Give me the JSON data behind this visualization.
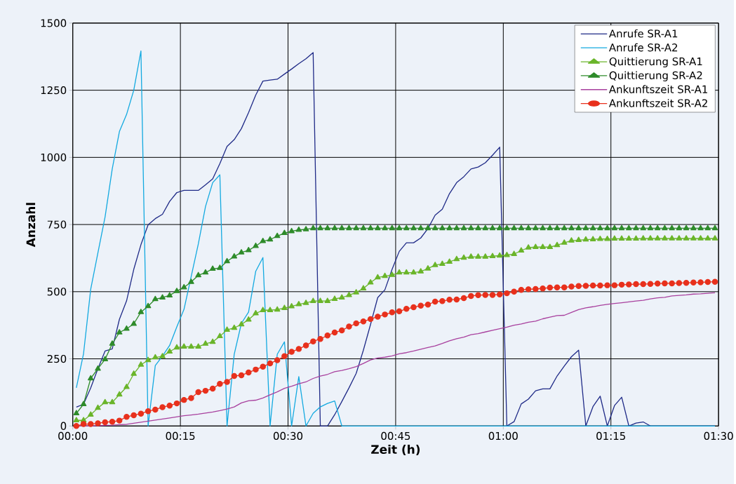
{
  "chart_data": {
    "type": "line",
    "xlabel": "Zeit (h)",
    "ylabel": "Anzahl",
    "x": [
      0.5,
      1.5,
      2.5,
      3.5,
      4.5,
      5.5,
      6.5,
      7.5,
      8.5,
      9.5,
      10.5,
      11.5,
      12.5,
      13.5,
      14.5,
      15.5,
      16.5,
      17.5,
      18.5,
      19.5,
      20.5,
      21.5,
      22.5,
      23.5,
      24.5,
      25.5,
      26.5,
      27.5,
      28.5,
      29.5,
      30.5,
      31.5,
      32.5,
      33.5,
      34.5,
      35.5,
      36.5,
      37.5,
      38.5,
      39.5,
      40.5,
      41.5,
      42.5,
      43.5,
      44.5,
      45.5,
      46.5,
      47.5,
      48.5,
      49.5,
      50.5,
      51.5,
      52.5,
      53.5,
      54.5,
      55.5,
      56.5,
      57.5,
      58.5,
      59.5,
      60.5,
      61.5,
      62.5,
      63.5,
      64.5,
      65.5,
      66.5,
      67.5,
      68.5,
      69.5,
      70.5,
      71.5,
      72.5,
      73.5,
      74.5,
      75.5,
      76.5,
      77.5,
      78.5,
      79.5,
      80.5,
      81.5,
      82.5,
      83.5,
      84.5,
      85.5,
      86.5,
      87.5,
      88.5,
      89.5
    ],
    "xlim": [
      0,
      90
    ],
    "xticks": [
      {
        "value": 0,
        "label": "00:00"
      },
      {
        "value": 15,
        "label": "00:15"
      },
      {
        "value": 30,
        "label": "00:30"
      },
      {
        "value": 45,
        "label": "00:45"
      },
      {
        "value": 60,
        "label": "01:00"
      },
      {
        "value": 75,
        "label": "01:15"
      },
      {
        "value": 90,
        "label": "01:30"
      }
    ],
    "ylim": [
      0,
      1500
    ],
    "yticks": [
      0,
      250,
      500,
      750,
      1000,
      1250,
      1500
    ],
    "grid": true,
    "legend": "top right",
    "series": [
      {
        "name": "Anrufe SR-A1",
        "color": "#1f2a87",
        "marker": "none",
        "values": [
          70,
          81,
          142,
          213,
          279,
          287,
          397,
          466,
          583,
          675,
          749,
          772,
          788,
          836,
          869,
          877,
          877,
          877,
          898,
          920,
          977,
          1041,
          1066,
          1107,
          1167,
          1232,
          1284,
          1288,
          1291,
          1310,
          1329,
          1349,
          1367,
          1390,
          0,
          0,
          42,
          91,
          142,
          196,
          282,
          378,
          478,
          507,
          583,
          650,
          682,
          682,
          700,
          735,
          785,
          807,
          865,
          906,
          928,
          957,
          964,
          980,
          1008,
          1038,
          0,
          16,
          82,
          100,
          131,
          138,
          138,
          186,
          223,
          258,
          282,
          0,
          72,
          111,
          0,
          76,
          107,
          0,
          11,
          15,
          0,
          0,
          0,
          0,
          0,
          0,
          0,
          0,
          0,
          0
        ]
      },
      {
        "name": "Anrufe SR-A2",
        "color": "#12a9e0",
        "marker": "none",
        "values": [
          142,
          269,
          509,
          644,
          778,
          957,
          1096,
          1160,
          1250,
          1396,
          0,
          225,
          260,
          300,
          369,
          434,
          556,
          678,
          817,
          906,
          935,
          0,
          267,
          382,
          424,
          576,
          627,
          0,
          267,
          313,
          0,
          184,
          0,
          47,
          71,
          84,
          93,
          0,
          0,
          0,
          0,
          0,
          0,
          0,
          0,
          0,
          0,
          0,
          0,
          0,
          0,
          0,
          0,
          0,
          0,
          0,
          0,
          0,
          0,
          0,
          0,
          0,
          0,
          0,
          0,
          0,
          0,
          0,
          0,
          0,
          0,
          0,
          0,
          0,
          0,
          0,
          0,
          0,
          0,
          0,
          0,
          0,
          0,
          0,
          0,
          0,
          0,
          0,
          0,
          0
        ]
      },
      {
        "name": "Quittierung SR-A1",
        "color": "#6ab52a",
        "marker": "triangle",
        "values": [
          21,
          21,
          42,
          67,
          88,
          88,
          117,
          145,
          194,
          228,
          245,
          255,
          259,
          277,
          292,
          295,
          295,
          295,
          306,
          313,
          334,
          358,
          365,
          378,
          396,
          419,
          431,
          431,
          433,
          439,
          445,
          453,
          458,
          465,
          465,
          465,
          473,
          478,
          487,
          497,
          512,
          534,
          553,
          558,
          562,
          571,
          571,
          571,
          575,
          586,
          599,
          603,
          611,
          621,
          626,
          630,
          630,
          630,
          632,
          634,
          636,
          640,
          653,
          664,
          666,
          666,
          666,
          673,
          682,
          690,
          692,
          694,
          695,
          696,
          696,
          697,
          697,
          697,
          697,
          698,
          698,
          698,
          698,
          698,
          698,
          698,
          698,
          698,
          698,
          698
        ]
      },
      {
        "name": "Quittierung SR-A2",
        "color": "#2e8b2a",
        "marker": "triangle",
        "values": [
          47,
          81,
          177,
          213,
          248,
          306,
          348,
          362,
          380,
          424,
          446,
          472,
          478,
          486,
          502,
          516,
          536,
          561,
          571,
          585,
          588,
          613,
          631,
          646,
          654,
          670,
          688,
          694,
          707,
          718,
          725,
          730,
          732,
          736,
          736,
          736,
          736,
          736,
          736,
          736,
          736,
          736,
          736,
          736,
          736,
          736,
          736,
          736,
          736,
          736,
          736,
          736,
          736,
          736,
          736,
          736,
          736,
          736,
          736,
          736,
          736,
          736,
          736,
          736,
          736,
          736,
          736,
          736,
          736,
          736,
          736,
          736,
          736,
          736,
          736,
          736,
          736,
          736,
          736,
          736,
          736,
          736,
          736,
          736,
          736,
          736,
          736,
          736,
          736,
          736
        ]
      },
      {
        "name": "Ankunftszeit SR-A1",
        "color": "#a8409e",
        "marker": "none",
        "values": [
          0,
          0,
          0,
          1,
          2,
          3,
          5,
          6,
          10,
          14,
          18,
          22,
          26,
          30,
          34,
          38,
          41,
          44,
          48,
          52,
          57,
          63,
          71,
          86,
          94,
          96,
          104,
          116,
          127,
          140,
          148,
          157,
          164,
          177,
          186,
          192,
          202,
          207,
          213,
          221,
          233,
          246,
          253,
          256,
          261,
          269,
          273,
          279,
          286,
          292,
          298,
          307,
          317,
          325,
          331,
          340,
          344,
          350,
          356,
          362,
          368,
          375,
          380,
          386,
          390,
          399,
          405,
          411,
          412,
          423,
          433,
          440,
          444,
          449,
          453,
          456,
          459,
          462,
          465,
          468,
          473,
          477,
          479,
          484,
          486,
          488,
          491,
          492,
          494,
          496
        ]
      },
      {
        "name": "Ankunftszeit SR-A2",
        "color": "#e8301c",
        "marker": "circle",
        "values": [
          0,
          7,
          7,
          10,
          14,
          16,
          20,
          34,
          40,
          46,
          55,
          61,
          70,
          76,
          84,
          97,
          104,
          126,
          131,
          139,
          157,
          164,
          186,
          189,
          199,
          210,
          221,
          233,
          245,
          260,
          276,
          287,
          300,
          315,
          324,
          337,
          348,
          356,
          370,
          382,
          389,
          398,
          407,
          415,
          423,
          427,
          436,
          442,
          448,
          452,
          463,
          465,
          470,
          471,
          476,
          484,
          487,
          488,
          488,
          490,
          494,
          500,
          507,
          509,
          510,
          512,
          515,
          516,
          516,
          519,
          521,
          522,
          523,
          523,
          524,
          524,
          526,
          527,
          528,
          528,
          529,
          530,
          531,
          531,
          532,
          533,
          534,
          535,
          536,
          537
        ]
      }
    ]
  }
}
